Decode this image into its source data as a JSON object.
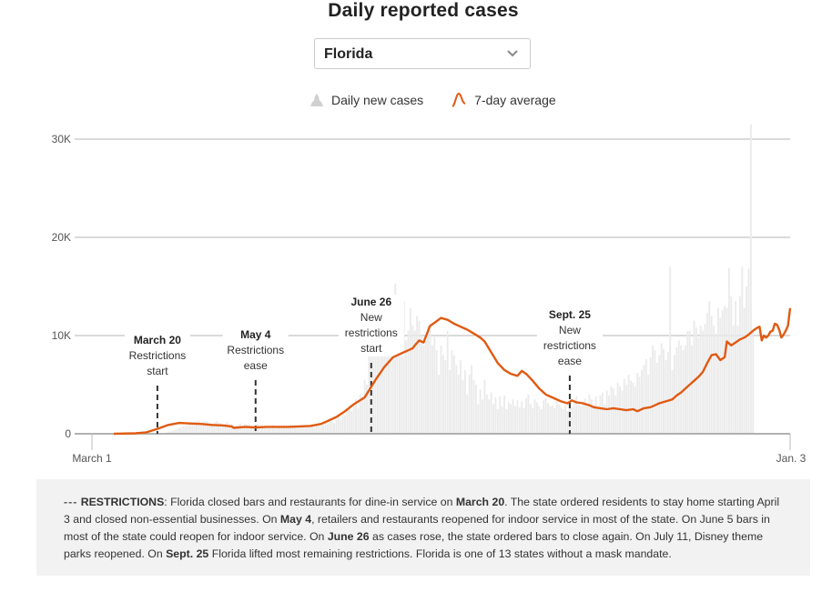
{
  "title": "Daily reported cases",
  "selector": {
    "selected": "Florida",
    "icon": "chevron-down-icon"
  },
  "legend": [
    {
      "label": "Daily new cases",
      "icon": "bar-area-icon",
      "color": "#d9d9d9"
    },
    {
      "label": "7-day average",
      "icon": "line-curve-icon",
      "color": "#e05a12"
    }
  ],
  "colors": {
    "bars": "#ebebeb",
    "line": "#e05a12",
    "grid": "#b4b4b4",
    "axis": "#999999",
    "annotation": "#333333"
  },
  "chart_data": {
    "type": "bar",
    "title": "Daily reported cases",
    "xlabel": "",
    "ylabel": "",
    "x_range": [
      "March 1",
      "Jan. 3"
    ],
    "total_days": 309,
    "ylim": [
      0,
      30000
    ],
    "yticks": [
      0,
      10000,
      20000,
      30000
    ],
    "ytick_labels": [
      "0",
      "10K",
      "20K",
      "30K"
    ],
    "xtick_labels": [
      "March 1",
      "Jan. 3"
    ],
    "grid": true,
    "legend_position": "top-center",
    "series": [
      {
        "name": "Daily new cases",
        "kind": "bar",
        "day_start": 0,
        "values": [
          0,
          0,
          0,
          0,
          0,
          0,
          0,
          0,
          0,
          0,
          0,
          0,
          0,
          0,
          0,
          0,
          0,
          0,
          0,
          0,
          20,
          40,
          70,
          120,
          200,
          260,
          300,
          400,
          500,
          600,
          700,
          750,
          800,
          900,
          1000,
          1100,
          1200,
          1250,
          1300,
          1100,
          1200,
          1300,
          1250,
          1100,
          1000,
          1100,
          1300,
          1150,
          1050,
          900,
          1000,
          1200,
          950,
          1000,
          900,
          850,
          950,
          1050,
          800,
          1000,
          950,
          900,
          800,
          700,
          850,
          1000,
          700,
          750,
          650,
          800,
          700,
          650,
          900,
          750,
          800,
          700,
          600,
          850,
          750,
          700,
          900,
          650,
          800,
          700,
          800,
          900,
          750,
          650,
          800,
          850,
          950,
          700,
          800,
          850,
          750,
          900,
          1300,
          1000,
          1200,
          1300,
          1100,
          1500,
          1700,
          1400,
          2000,
          1900,
          2500,
          2800,
          2300,
          3000,
          3500,
          2600,
          4000,
          3800,
          5500,
          5000,
          8500,
          9000,
          8000,
          8500,
          10000,
          8000,
          9500,
          11000,
          11500,
          10000,
          9500,
          12000,
          15300,
          10000,
          11000,
          12500,
          13500,
          9500,
          10500,
          12800,
          11000,
          10500,
          12000,
          11500,
          10000,
          9000,
          9500,
          11000,
          10500,
          9000,
          10000,
          8500,
          6000,
          9000,
          8000,
          7500,
          10500,
          6500,
          8500,
          8000,
          7000,
          6000,
          7500,
          5500,
          6500,
          4000,
          6000,
          7000,
          5500,
          5000,
          3000,
          4500,
          3500,
          5500,
          4000,
          3500,
          4200,
          3000,
          3700,
          2500,
          3800,
          2800,
          3900,
          2500,
          3200,
          3000,
          3500,
          2800,
          3400,
          2700,
          3300,
          2600,
          3600,
          4000,
          3000,
          2600,
          3500,
          3200,
          2800,
          2500,
          3400,
          3600,
          3100,
          2800,
          2900,
          2600,
          3300,
          3000,
          2700,
          2500,
          2900,
          2300,
          3000,
          2700,
          3400,
          3800,
          3000,
          2800,
          3300,
          3600,
          2800,
          4000,
          3500,
          3000,
          3800,
          2600,
          3900,
          4200,
          3000,
          4400,
          3900,
          4800,
          4600,
          3900,
          5200,
          4800,
          4400,
          5600,
          5000,
          6000,
          5400,
          5200,
          4800,
          6200,
          5800,
          6500,
          7000,
          7600,
          6000,
          7800,
          9000,
          8500,
          7200,
          8000,
          9200,
          8600,
          7500,
          8300,
          17000,
          6500,
          8000,
          8800,
          9500,
          9000,
          8500,
          9000,
          10500,
          10500,
          9000,
          11500,
          10800,
          9800,
          11000,
          10500,
          11200,
          12300,
          13500,
          12000,
          11000,
          10200,
          12800,
          11800,
          12600,
          13000,
          12800,
          16900,
          14000,
          11000,
          13500,
          11000,
          14000,
          17000,
          12800,
          15000,
          16800,
          31500,
          10500
        ],
        "note": "approximate, read from bar heights"
      },
      {
        "name": "7-day average",
        "kind": "line",
        "points": [
          [
            10,
            0
          ],
          [
            20,
            50
          ],
          [
            25,
            150
          ],
          [
            30,
            500
          ],
          [
            35,
            900
          ],
          [
            40,
            1100
          ],
          [
            45,
            1050
          ],
          [
            50,
            1000
          ],
          [
            55,
            900
          ],
          [
            60,
            850
          ],
          [
            64,
            750
          ],
          [
            65,
            600
          ],
          [
            70,
            700
          ],
          [
            75,
            650
          ],
          [
            80,
            700
          ],
          [
            85,
            700
          ],
          [
            90,
            700
          ],
          [
            95,
            750
          ],
          [
            100,
            800
          ],
          [
            105,
            1000
          ],
          [
            108,
            1300
          ],
          [
            112,
            1700
          ],
          [
            116,
            2300
          ],
          [
            120,
            3000
          ],
          [
            125,
            3700
          ],
          [
            130,
            5500
          ],
          [
            134,
            6800
          ],
          [
            138,
            7800
          ],
          [
            142,
            8200
          ],
          [
            145,
            8500
          ],
          [
            147,
            8700
          ],
          [
            148,
            9000
          ],
          [
            150,
            9500
          ],
          [
            152,
            9300
          ],
          [
            155,
            11000
          ],
          [
            157,
            11300
          ],
          [
            160,
            11800
          ],
          [
            163,
            11600
          ],
          [
            166,
            11200
          ],
          [
            168,
            11000
          ],
          [
            170,
            10800
          ],
          [
            172,
            10600
          ],
          [
            175,
            10200
          ],
          [
            178,
            9800
          ],
          [
            180,
            9400
          ],
          [
            183,
            8300
          ],
          [
            186,
            7200
          ],
          [
            189,
            6500
          ],
          [
            192,
            6100
          ],
          [
            195,
            5900
          ],
          [
            197,
            6400
          ],
          [
            199,
            6100
          ],
          [
            202,
            5400
          ],
          [
            205,
            4600
          ],
          [
            208,
            4000
          ],
          [
            212,
            3600
          ],
          [
            215,
            3300
          ],
          [
            218,
            3100
          ],
          [
            220,
            3400
          ],
          [
            222,
            3200
          ],
          [
            225,
            3100
          ],
          [
            228,
            2900
          ],
          [
            230,
            2700
          ],
          [
            233,
            2600
          ],
          [
            236,
            2500
          ],
          [
            239,
            2600
          ],
          [
            242,
            2500
          ],
          [
            245,
            2400
          ],
          [
            248,
            2500
          ],
          [
            250,
            2300
          ],
          [
            253,
            2600
          ],
          [
            256,
            2700
          ],
          [
            258,
            2900
          ],
          [
            260,
            3100
          ],
          [
            263,
            3300
          ],
          [
            266,
            3500
          ],
          [
            268,
            3900
          ],
          [
            270,
            4200
          ],
          [
            272,
            4600
          ],
          [
            274,
            5000
          ],
          [
            276,
            5400
          ],
          [
            278,
            5800
          ],
          [
            280,
            6300
          ],
          [
            282,
            7200
          ],
          [
            284,
            8000
          ],
          [
            286,
            8100
          ],
          [
            288,
            7500
          ],
          [
            290,
            7800
          ],
          [
            291,
            9400
          ],
          [
            293,
            9000
          ],
          [
            295,
            9300
          ],
          [
            297,
            9600
          ],
          [
            299,
            9800
          ],
          [
            301,
            10100
          ],
          [
            303,
            10500
          ],
          [
            305,
            10800
          ],
          [
            306,
            10900
          ],
          [
            307,
            9500
          ],
          [
            308,
            10000
          ],
          [
            309,
            9800
          ],
          [
            310,
            10000
          ],
          [
            311,
            10400
          ],
          [
            312,
            10500
          ],
          [
            313,
            11200
          ],
          [
            314,
            11100
          ],
          [
            315,
            10600
          ],
          [
            316,
            9800
          ],
          [
            317,
            10100
          ],
          [
            318,
            10500
          ],
          [
            319,
            11000
          ],
          [
            320,
            12800
          ]
        ]
      }
    ],
    "annotations": [
      {
        "date": "March 20",
        "day": 19,
        "lines": [
          "Restrictions",
          "start"
        ]
      },
      {
        "date": "May 4",
        "day": 64,
        "lines": [
          "Restrictions",
          "ease"
        ]
      },
      {
        "date": "June 26",
        "day": 117,
        "lines": [
          "New",
          "restrictions",
          "start"
        ]
      },
      {
        "date": "Sept. 25",
        "day": 208,
        "lines": [
          "New",
          "restrictions",
          "ease"
        ]
      }
    ]
  },
  "note": {
    "prefix": "---",
    "segments": [
      {
        "text": "RESTRICTIONS",
        "bold": true
      },
      {
        "text": ": Florida closed bars and restaurants for dine-in service on ",
        "bold": false
      },
      {
        "text": "March 20",
        "bold": true
      },
      {
        "text": ". The state ordered residents to stay home starting April 3 and closed non-essential businesses. On ",
        "bold": false
      },
      {
        "text": "May 4",
        "bold": true
      },
      {
        "text": ", retailers and restaurants reopened for indoor service in most of the state. On June 5 bars in most of the state could reopen for indoor service. On ",
        "bold": false
      },
      {
        "text": "June 26",
        "bold": true
      },
      {
        "text": " as cases rose, the state ordered bars to close again. On July 11, Disney theme parks reopened. On ",
        "bold": false
      },
      {
        "text": "Sept. 25",
        "bold": true
      },
      {
        "text": " Florida lifted most remaining restrictions. Florida is one of 13 states without a mask mandate.",
        "bold": false
      }
    ]
  }
}
